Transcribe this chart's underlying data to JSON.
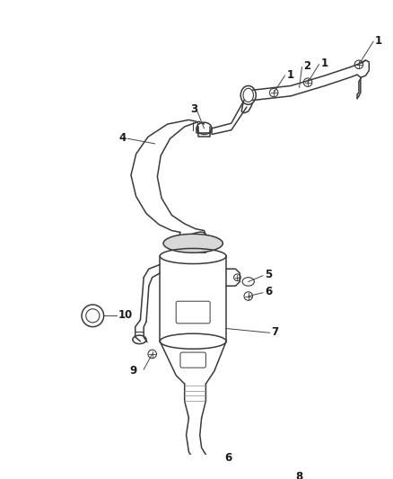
{
  "background_color": "#ffffff",
  "line_color": "#3a3a3a",
  "label_color": "#1a1a1a",
  "fig_width": 4.38,
  "fig_height": 5.33,
  "dpi": 100
}
